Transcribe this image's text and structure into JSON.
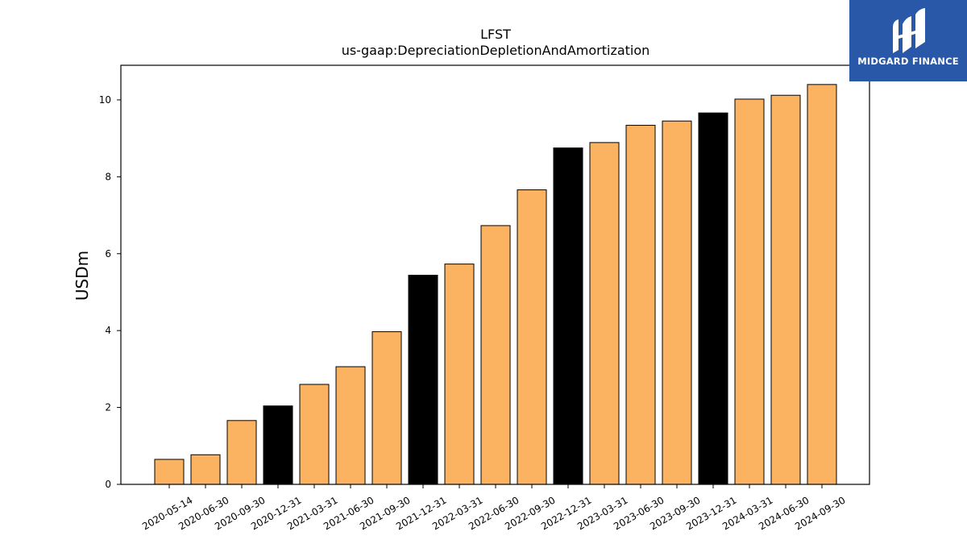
{
  "chart_data": {
    "type": "bar",
    "title": "LFST",
    "subtitle": "us-gaap:DepreciationDepletionAndAmortization",
    "xlabel": "",
    "ylabel": "USDm",
    "ylim": [
      0,
      10.9
    ],
    "yticks": [
      0,
      2,
      4,
      6,
      8,
      10
    ],
    "grid": false,
    "categories": [
      "2020-05-14",
      "2020-06-30",
      "2020-09-30",
      "2020-12-31",
      "2021-03-31",
      "2021-06-30",
      "2021-09-30",
      "2021-12-31",
      "2022-03-31",
      "2022-06-30",
      "2022-09-30",
      "2022-12-31",
      "2023-03-31",
      "2023-06-30",
      "2023-09-30",
      "2023-12-31",
      "2024-03-31",
      "2024-06-30",
      "2024-09-30"
    ],
    "values": [
      0.65,
      0.77,
      1.66,
      2.04,
      2.6,
      3.06,
      3.97,
      5.44,
      5.73,
      6.73,
      7.66,
      8.75,
      8.89,
      9.34,
      9.45,
      9.66,
      10.02,
      10.12,
      10.4
    ],
    "colors": {
      "quarter": "#fbb362",
      "year_end": "#000000",
      "edge": "#000000"
    },
    "bar_color_by_category": [
      "quarter",
      "quarter",
      "quarter",
      "year_end",
      "quarter",
      "quarter",
      "quarter",
      "year_end",
      "quarter",
      "quarter",
      "quarter",
      "year_end",
      "quarter",
      "quarter",
      "quarter",
      "year_end",
      "quarter",
      "quarter",
      "quarter"
    ]
  },
  "logo": {
    "text": "MIDGARD FINANCE",
    "background": "#2a58a8"
  }
}
